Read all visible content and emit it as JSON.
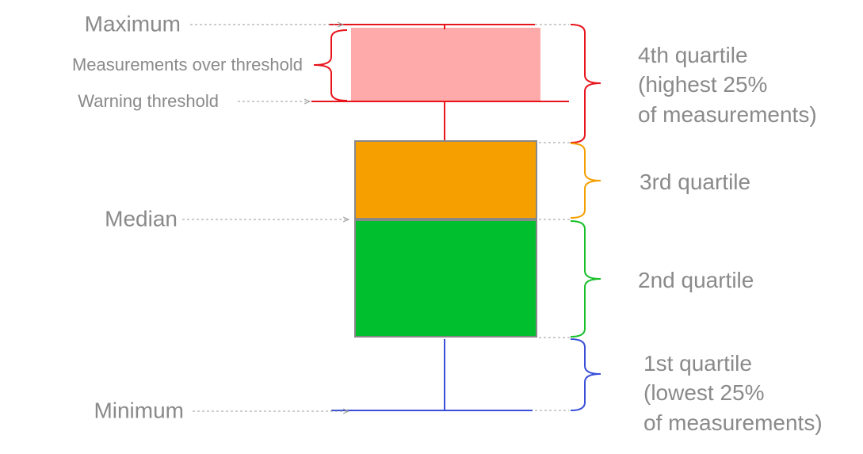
{
  "left_labels": {
    "maximum": "Maximum",
    "over_threshold": "Measurements over threshold",
    "warning_threshold": "Warning threshold",
    "median": "Median",
    "minimum": "Minimum"
  },
  "right_labels": {
    "q4": [
      "4th quartile",
      "(highest 25%",
      "of measurements)"
    ],
    "q3": [
      "3rd quartile"
    ],
    "q2": [
      "2nd quartile"
    ],
    "q1": [
      "1st quartile",
      "(lowest 25%",
      "of measurements)"
    ]
  }
}
